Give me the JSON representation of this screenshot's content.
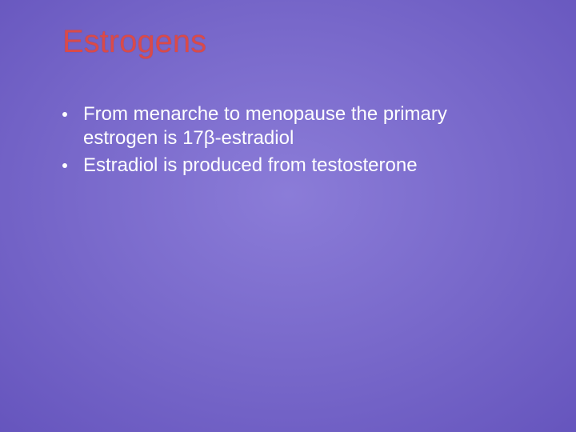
{
  "slide": {
    "title": "Estrogens",
    "title_color": "#d94a4a",
    "title_fontsize": 40,
    "background_gradient": {
      "inner": "#8b7cd8",
      "mid1": "#7565c8",
      "mid2": "#5e4db8",
      "outer": "#4a3aa0"
    },
    "body_color": "#ffffff",
    "body_fontsize": 24,
    "bullets": [
      "From menarche to menopause the primary estrogen is 17β-estradiol",
      "Estradiol is produced from testosterone"
    ]
  }
}
